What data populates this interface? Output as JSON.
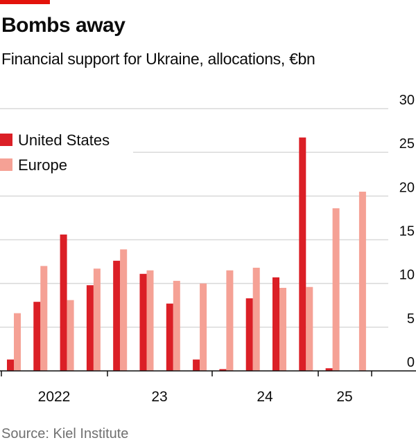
{
  "header": {
    "title": "Bombs away",
    "subtitle": "Financial support for Ukraine, allocations, €bn"
  },
  "footer": {
    "source": "Source: Kiel Institute"
  },
  "colors": {
    "accent": "#e3120b",
    "us": "#db1f26",
    "europe": "#f5a195",
    "grid": "#d9d9d9"
  },
  "chart_data": {
    "type": "bar",
    "title": "Bombs away",
    "subtitle": "Financial support for Ukraine, allocations, €bn",
    "xlabel": "",
    "ylabel": "€bn",
    "ylim": [
      0,
      30
    ],
    "yticks": [
      "0",
      "5",
      "10",
      "15",
      "20",
      "25",
      "30"
    ],
    "ytick_values": [
      0,
      5,
      10,
      15,
      20,
      25,
      30
    ],
    "year_labels": [
      "2022",
      "23",
      "24",
      "25"
    ],
    "categories": [
      "2022 Q1",
      "2022 Q2",
      "2022 Q3",
      "2022 Q4",
      "2023 Q1",
      "2023 Q2",
      "2023 Q3",
      "2023 Q4",
      "2024 Q1",
      "2024 Q2",
      "2024 Q3",
      "2024 Q4",
      "2025 Q1",
      "2025 Q2"
    ],
    "series": [
      {
        "name": "United States",
        "values": [
          1.3,
          7.9,
          15.6,
          9.8,
          12.6,
          11.1,
          7.7,
          1.3,
          0.2,
          8.3,
          10.7,
          26.7,
          0.3,
          0
        ]
      },
      {
        "name": "Europe",
        "values": [
          6.6,
          12.0,
          8.1,
          11.7,
          13.9,
          11.5,
          10.3,
          10.0,
          11.5,
          11.8,
          9.5,
          9.6,
          18.6,
          20.5
        ]
      }
    ],
    "legend": "top-left",
    "grid": true
  }
}
